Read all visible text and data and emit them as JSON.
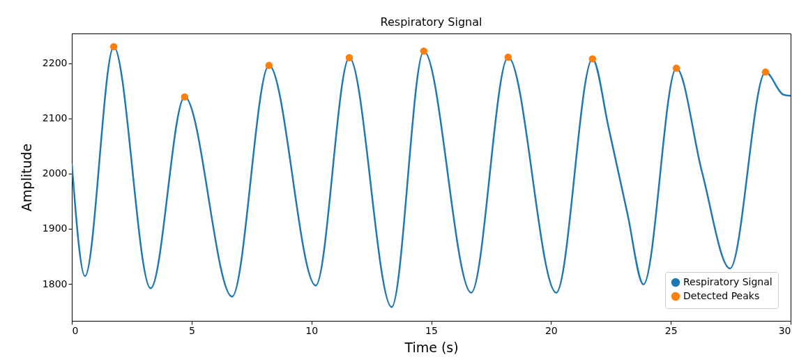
{
  "chart_data": {
    "type": "line",
    "title": "Respiratory Signal",
    "xlabel": "Time (s)",
    "ylabel": "Amplitude",
    "xlim": [
      0,
      30
    ],
    "xticks": [
      0,
      5,
      10,
      15,
      20,
      25,
      30
    ],
    "ylim": [
      1733,
      2254
    ],
    "yticks": [
      1800,
      1900,
      2000,
      2100,
      2200
    ],
    "grid": false,
    "legend": "bottom right",
    "series": [
      {
        "name": "Respiratory Signal",
        "color": "#1f77b4",
        "line_style": "solid",
        "x": [
          0,
          0.55,
          1.75,
          3.29,
          4.71,
          6.69,
          8.23,
          10.18,
          11.58,
          13.35,
          14.69,
          16.67,
          18.21,
          20.22,
          21.73,
          22.4,
          23.19,
          23.86,
          25.23,
          26.3,
          27.47,
          28.95,
          29.7,
          30
        ],
        "values": [
          2018,
          1814,
          2230,
          1792,
          2139,
          1777,
          2196,
          1797,
          2210,
          1758,
          2222,
          1784,
          2211,
          1784,
          2208,
          2084,
          1927,
          1799,
          2191,
          2003,
          1828,
          2184,
          2143,
          2141
        ]
      },
      {
        "name": "Detected Peaks",
        "type": "scatter",
        "marker": "circle",
        "color": "#ff7f0e",
        "x": [
          1.75,
          4.71,
          8.23,
          11.58,
          14.69,
          18.21,
          21.73,
          25.23,
          28.95
        ],
        "values": [
          2230,
          2139,
          2196,
          2210,
          2222,
          2211,
          2208,
          2191,
          2184
        ]
      }
    ]
  }
}
